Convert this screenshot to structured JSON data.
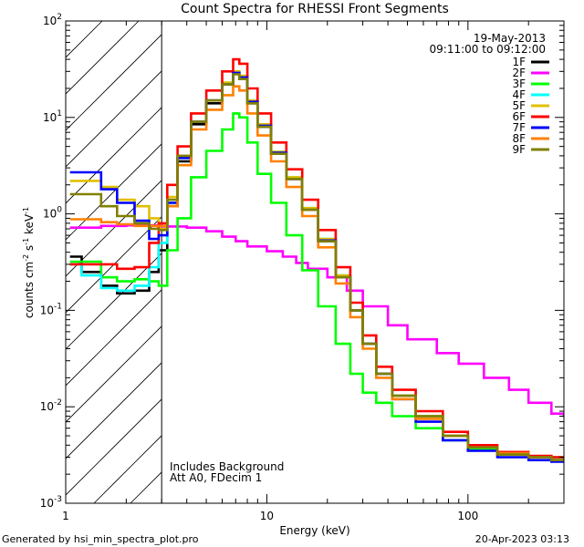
{
  "chart_data": {
    "type": "line",
    "title": "Count Spectra for RHESSI Front Segments",
    "xlabel": "Energy (keV)",
    "ylabel_main": "counts cm",
    "ylabel_exp1": "-2",
    "ylabel_mid": " s",
    "ylabel_exp2": "-1",
    "ylabel_end": " keV",
    "ylabel_exp3": "-1",
    "xscale": "log",
    "yscale": "log",
    "xlim": [
      1,
      300
    ],
    "ylim": [
      0.001,
      100
    ],
    "x_ticks": [
      {
        "value": 1,
        "label": "1"
      },
      {
        "value": 10,
        "label": "10"
      },
      {
        "value": 100,
        "label": "100"
      }
    ],
    "y_ticks": [
      {
        "value": 100,
        "base": "10",
        "exp": "2"
      },
      {
        "value": 10,
        "base": "10",
        "exp": "1"
      },
      {
        "value": 1,
        "base": "10",
        "exp": "0"
      },
      {
        "value": 0.1,
        "base": "10",
        "exp": "-1"
      },
      {
        "value": 0.01,
        "base": "10",
        "exp": "-2"
      },
      {
        "value": 0.001,
        "base": "10",
        "exp": "-3"
      }
    ],
    "date": "19-May-2013",
    "time_range": "09:11:00 to 09:12:00",
    "annotations": [
      "Includes Background",
      "Att A0, FDecim 1"
    ],
    "hatched_region": [
      1,
      3
    ],
    "legend_position": "top-right",
    "series": [
      {
        "name": "1F",
        "color": "#000000",
        "points": [
          [
            1.05,
            0.36
          ],
          [
            1.2,
            0.25
          ],
          [
            1.5,
            0.18
          ],
          [
            1.8,
            0.15
          ],
          [
            2.2,
            0.16
          ],
          [
            2.6,
            0.25
          ],
          [
            2.9,
            0.42
          ],
          [
            3.2,
            1.2
          ],
          [
            3.6,
            3.5
          ],
          [
            4.2,
            8.5
          ],
          [
            5,
            14
          ],
          [
            6,
            22
          ],
          [
            6.8,
            29
          ],
          [
            7.3,
            26
          ],
          [
            8,
            14
          ],
          [
            9,
            8
          ],
          [
            10.5,
            4.2
          ],
          [
            12.5,
            2.3
          ],
          [
            15,
            1.1
          ],
          [
            18,
            0.52
          ],
          [
            22,
            0.22
          ],
          [
            26,
            0.1
          ],
          [
            30,
            0.045
          ],
          [
            35,
            0.022
          ],
          [
            42,
            0.013
          ],
          [
            55,
            0.008
          ],
          [
            75,
            0.005
          ],
          [
            100,
            0.0038
          ],
          [
            140,
            0.0032
          ],
          [
            200,
            0.003
          ],
          [
            260,
            0.0028
          ],
          [
            300,
            0.0028
          ]
        ]
      },
      {
        "name": "2F",
        "color": "#ff00ff",
        "points": [
          [
            1.05,
            0.72
          ],
          [
            1.5,
            0.75
          ],
          [
            2,
            0.76
          ],
          [
            2.5,
            0.76
          ],
          [
            3,
            0.74
          ],
          [
            4,
            0.72
          ],
          [
            5,
            0.66
          ],
          [
            6,
            0.58
          ],
          [
            7,
            0.52
          ],
          [
            8,
            0.46
          ],
          [
            10,
            0.41
          ],
          [
            12,
            0.36
          ],
          [
            14,
            0.31
          ],
          [
            16,
            0.27
          ],
          [
            20,
            0.22
          ],
          [
            25,
            0.16
          ],
          [
            30,
            0.11
          ],
          [
            40,
            0.07
          ],
          [
            50,
            0.05
          ],
          [
            70,
            0.036
          ],
          [
            90,
            0.028
          ],
          [
            120,
            0.02
          ],
          [
            160,
            0.015
          ],
          [
            200,
            0.011
          ],
          [
            260,
            0.0085
          ],
          [
            300,
            0.0078
          ]
        ]
      },
      {
        "name": "3F",
        "color": "#00ff00",
        "points": [
          [
            1.05,
            0.32
          ],
          [
            1.5,
            0.22
          ],
          [
            1.8,
            0.2
          ],
          [
            2.2,
            0.21
          ],
          [
            2.6,
            0.2
          ],
          [
            2.9,
            0.18
          ],
          [
            3.2,
            0.42
          ],
          [
            3.6,
            0.9
          ],
          [
            4.2,
            2.4
          ],
          [
            5,
            4.5
          ],
          [
            6,
            7.5
          ],
          [
            6.8,
            11
          ],
          [
            7.3,
            10
          ],
          [
            8,
            5.5
          ],
          [
            9,
            2.6
          ],
          [
            10.5,
            1.3
          ],
          [
            12.5,
            0.6
          ],
          [
            15,
            0.26
          ],
          [
            18,
            0.11
          ],
          [
            22,
            0.045
          ],
          [
            26,
            0.022
          ],
          [
            30,
            0.014
          ],
          [
            35,
            0.011
          ],
          [
            42,
            0.008
          ],
          [
            55,
            0.006
          ],
          [
            75,
            0.0045
          ],
          [
            100,
            0.0036
          ],
          [
            140,
            0.0032
          ],
          [
            200,
            0.003
          ],
          [
            260,
            0.003
          ],
          [
            300,
            0.0029
          ]
        ]
      },
      {
        "name": "4F",
        "color": "#00ffff",
        "points": [
          [
            1.05,
            0.3
          ],
          [
            1.2,
            0.23
          ],
          [
            1.5,
            0.17
          ],
          [
            1.8,
            0.16
          ],
          [
            2.2,
            0.18
          ],
          [
            2.6,
            0.28
          ],
          [
            2.9,
            0.5
          ],
          [
            3.2,
            1.3
          ],
          [
            3.6,
            3.8
          ],
          [
            4.2,
            9
          ],
          [
            5,
            15
          ],
          [
            6,
            23
          ],
          [
            6.8,
            30
          ],
          [
            7.3,
            27
          ],
          [
            8,
            15
          ],
          [
            9,
            8.5
          ],
          [
            10.5,
            4.4
          ],
          [
            12.5,
            2.4
          ],
          [
            15,
            1.15
          ],
          [
            18,
            0.55
          ],
          [
            22,
            0.23
          ],
          [
            26,
            0.1
          ],
          [
            30,
            0.045
          ],
          [
            35,
            0.022
          ],
          [
            42,
            0.013
          ],
          [
            55,
            0.008
          ],
          [
            75,
            0.005
          ],
          [
            100,
            0.0038
          ],
          [
            140,
            0.0032
          ],
          [
            200,
            0.003
          ],
          [
            260,
            0.0028
          ],
          [
            300,
            0.0028
          ]
        ]
      },
      {
        "name": "5F",
        "color": "#e0c000",
        "points": [
          [
            1.05,
            2.2
          ],
          [
            1.5,
            1.9
          ],
          [
            1.8,
            1.4
          ],
          [
            2.2,
            1.2
          ],
          [
            2.6,
            0.9
          ],
          [
            2.9,
            0.7
          ],
          [
            3.2,
            1.5
          ],
          [
            3.6,
            4
          ],
          [
            4.2,
            9
          ],
          [
            5,
            15
          ],
          [
            6,
            23
          ],
          [
            6.8,
            30
          ],
          [
            7.3,
            27
          ],
          [
            8,
            15
          ],
          [
            9,
            8.5
          ],
          [
            10.5,
            4.4
          ],
          [
            12.5,
            2.4
          ],
          [
            15,
            1.15
          ],
          [
            18,
            0.55
          ],
          [
            22,
            0.23
          ],
          [
            26,
            0.1
          ],
          [
            30,
            0.045
          ],
          [
            35,
            0.022
          ],
          [
            42,
            0.013
          ],
          [
            55,
            0.008
          ],
          [
            75,
            0.005
          ],
          [
            100,
            0.0038
          ],
          [
            140,
            0.0032
          ],
          [
            200,
            0.003
          ],
          [
            260,
            0.0028
          ],
          [
            300,
            0.0028
          ]
        ]
      },
      {
        "name": "6F",
        "color": "#ff0000",
        "points": [
          [
            1.05,
            0.3
          ],
          [
            1.5,
            0.3
          ],
          [
            1.8,
            0.27
          ],
          [
            2.2,
            0.28
          ],
          [
            2.6,
            0.5
          ],
          [
            2.9,
            0.8
          ],
          [
            3.2,
            2
          ],
          [
            3.6,
            5
          ],
          [
            4.2,
            11
          ],
          [
            5,
            19
          ],
          [
            6,
            30
          ],
          [
            6.8,
            40
          ],
          [
            7.3,
            36
          ],
          [
            8,
            20
          ],
          [
            9,
            11
          ],
          [
            10.5,
            5.5
          ],
          [
            12.5,
            2.9
          ],
          [
            15,
            1.4
          ],
          [
            18,
            0.68
          ],
          [
            22,
            0.28
          ],
          [
            26,
            0.12
          ],
          [
            30,
            0.055
          ],
          [
            35,
            0.026
          ],
          [
            42,
            0.015
          ],
          [
            55,
            0.009
          ],
          [
            75,
            0.0055
          ],
          [
            100,
            0.004
          ],
          [
            140,
            0.0034
          ],
          [
            200,
            0.0031
          ],
          [
            260,
            0.003
          ],
          [
            300,
            0.0029
          ]
        ]
      },
      {
        "name": "7F",
        "color": "#0000ff",
        "points": [
          [
            1.05,
            2.7
          ],
          [
            1.5,
            1.8
          ],
          [
            1.8,
            1.3
          ],
          [
            2.2,
            0.85
          ],
          [
            2.6,
            0.55
          ],
          [
            2.9,
            0.6
          ],
          [
            3.2,
            1.3
          ],
          [
            3.6,
            3.8
          ],
          [
            4.2,
            9
          ],
          [
            5,
            15
          ],
          [
            6,
            22
          ],
          [
            6.8,
            29
          ],
          [
            7.3,
            26
          ],
          [
            8,
            14.5
          ],
          [
            9,
            8.2
          ],
          [
            10.5,
            4.3
          ],
          [
            12.5,
            2.3
          ],
          [
            15,
            1.1
          ],
          [
            18,
            0.53
          ],
          [
            22,
            0.22
          ],
          [
            26,
            0.1
          ],
          [
            30,
            0.045
          ],
          [
            35,
            0.022
          ],
          [
            42,
            0.012
          ],
          [
            55,
            0.007
          ],
          [
            75,
            0.0045
          ],
          [
            100,
            0.0035
          ],
          [
            140,
            0.003
          ],
          [
            200,
            0.0028
          ],
          [
            260,
            0.0027
          ],
          [
            300,
            0.0027
          ]
        ]
      },
      {
        "name": "8F",
        "color": "#ff8000",
        "points": [
          [
            1.05,
            0.88
          ],
          [
            1.5,
            0.82
          ],
          [
            1.8,
            0.78
          ],
          [
            2.2,
            0.75
          ],
          [
            2.6,
            0.75
          ],
          [
            2.9,
            0.75
          ],
          [
            3.2,
            1.2
          ],
          [
            3.6,
            3.2
          ],
          [
            4.2,
            7.5
          ],
          [
            5,
            12
          ],
          [
            6,
            17
          ],
          [
            6.8,
            21
          ],
          [
            7.3,
            19
          ],
          [
            8,
            11
          ],
          [
            9,
            6.5
          ],
          [
            10.5,
            3.5
          ],
          [
            12.5,
            1.9
          ],
          [
            15,
            0.95
          ],
          [
            18,
            0.45
          ],
          [
            22,
            0.19
          ],
          [
            26,
            0.085
          ],
          [
            30,
            0.04
          ],
          [
            35,
            0.02
          ],
          [
            42,
            0.012
          ],
          [
            55,
            0.0075
          ],
          [
            75,
            0.005
          ],
          [
            100,
            0.0038
          ],
          [
            140,
            0.0033
          ],
          [
            200,
            0.003
          ],
          [
            260,
            0.0028
          ],
          [
            300,
            0.0028
          ]
        ]
      },
      {
        "name": "9F",
        "color": "#808000",
        "points": [
          [
            1.05,
            1.6
          ],
          [
            1.5,
            1.2
          ],
          [
            1.8,
            0.95
          ],
          [
            2.2,
            0.8
          ],
          [
            2.6,
            0.7
          ],
          [
            2.9,
            0.68
          ],
          [
            3.2,
            1.4
          ],
          [
            3.6,
            4
          ],
          [
            4.2,
            9
          ],
          [
            5,
            15
          ],
          [
            6,
            22
          ],
          [
            6.8,
            28
          ],
          [
            7.3,
            25
          ],
          [
            8,
            14
          ],
          [
            9,
            8
          ],
          [
            10.5,
            4.2
          ],
          [
            12.5,
            2.3
          ],
          [
            15,
            1.1
          ],
          [
            18,
            0.52
          ],
          [
            22,
            0.22
          ],
          [
            26,
            0.1
          ],
          [
            30,
            0.045
          ],
          [
            35,
            0.022
          ],
          [
            42,
            0.013
          ],
          [
            55,
            0.008
          ],
          [
            75,
            0.005
          ],
          [
            100,
            0.0038
          ],
          [
            140,
            0.0032
          ],
          [
            200,
            0.003
          ],
          [
            260,
            0.0028
          ],
          [
            300,
            0.0028
          ]
        ]
      }
    ]
  },
  "footer": {
    "generated_by": "Generated by hsi_min_spectra_plot.pro",
    "generated_at": "20-Apr-2023 03:13"
  }
}
